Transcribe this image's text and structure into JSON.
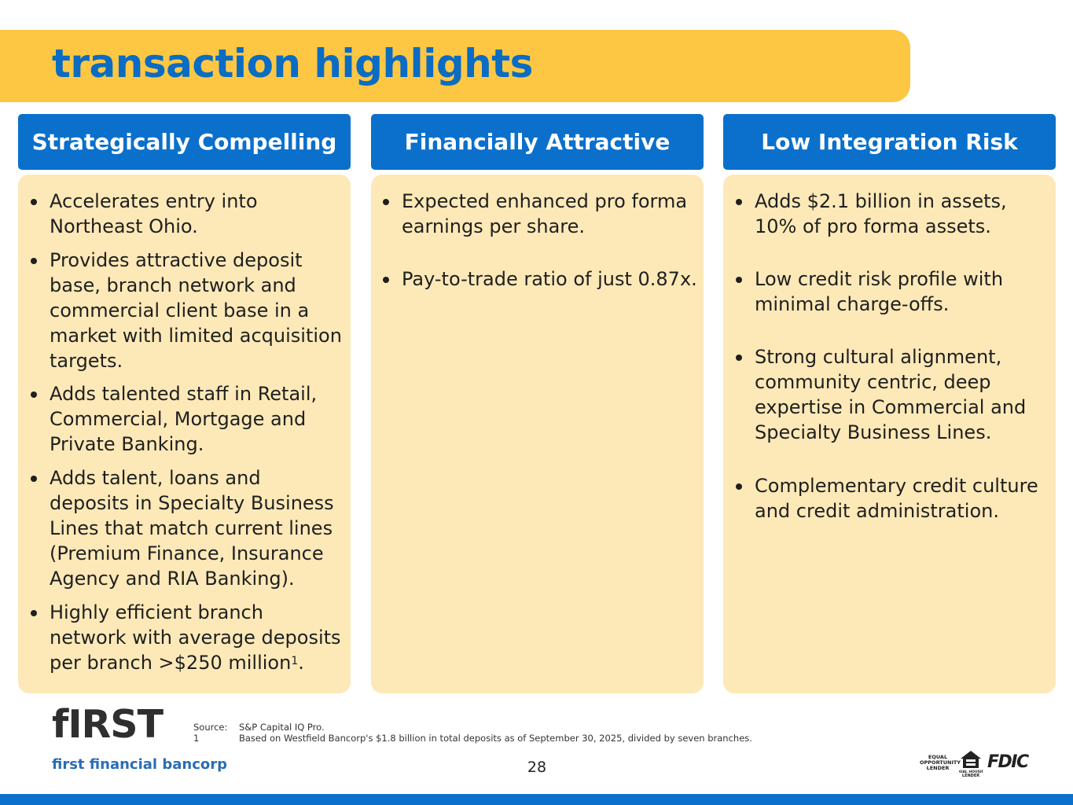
{
  "title": "transaction highlights",
  "columns": [
    {
      "header": "Strategically Compelling",
      "bullets": [
        {
          "lines": [
            "Accelerates entry into",
            "Northeast Ohio."
          ]
        },
        {
          "lines": [
            "Provides attractive deposit",
            "base, branch network and",
            "commercial client base in a",
            "market with limited acquisition",
            "targets."
          ]
        },
        {
          "lines": [
            "Adds talented staff in Retail,",
            "Commercial, Mortgage and",
            "Private Banking."
          ]
        },
        {
          "lines": [
            "Adds talent, loans and",
            "deposits in Specialty Business",
            "Lines that match current lines",
            "(Premium Finance, Insurance",
            "Agency and RIA Banking)."
          ]
        },
        {
          "lines": [
            "Highly efficient branch",
            "network with average deposits",
            "per branch >$250 million"
          ],
          "footnote": "1",
          "suffix": "."
        }
      ]
    },
    {
      "header": "Financially Attractive",
      "bullets": [
        {
          "lines": [
            "Expected enhanced pro forma",
            "earnings per share."
          ]
        },
        {
          "lines": [
            "Pay-to-trade ratio of just 0.87x."
          ]
        }
      ]
    },
    {
      "header": "Low Integration Risk",
      "bullets": [
        {
          "lines": [
            "Adds $2.1 billion in assets,",
            "10% of pro forma assets."
          ]
        },
        {
          "lines": [
            "Low credit risk profile with",
            "minimal charge-offs."
          ]
        },
        {
          "lines": [
            "Strong cultural alignment,",
            "community centric, deep",
            "expertise in Commercial and",
            "Specialty Business Lines."
          ]
        },
        {
          "lines": [
            "Complementary credit culture",
            "and credit administration."
          ]
        }
      ]
    }
  ],
  "footer": {
    "logo_main": "fIRST",
    "logo_sub": "first financial bancorp",
    "source_label": "Source:",
    "source_text": "S&P Capital IQ Pro.",
    "footnote_label": "1",
    "footnote_text": "Based on Westfield Bancorp's $1.8 billion in total deposits as of September 30, 2025, divided by seven branches.",
    "page_number": "28",
    "equal_opportunity": "EQUAL OPPORTUNITY LENDER",
    "equal_housing": "EQUAL HOUSING LENDER",
    "fdic": "FDIC"
  },
  "colors": {
    "title_band": "#fdc744",
    "title_text": "#0a6cc2",
    "header_bg": "#0a70cc",
    "panel_bg": "#fde9b8",
    "logo_sub": "#2a6db5"
  }
}
